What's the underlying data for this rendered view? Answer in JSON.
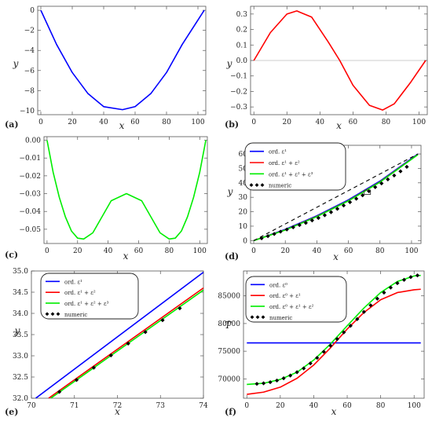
{
  "chart_data": [
    {
      "id": "a",
      "panel_label": "(a)",
      "type": "line",
      "xlabel": "x",
      "ylabel": "y",
      "xlim": [
        -2,
        105
      ],
      "ylim": [
        -10.4,
        0.4
      ],
      "xticks": [
        0,
        20,
        40,
        60,
        80,
        100
      ],
      "xtick_labels": [
        "0",
        "20",
        "40",
        "60",
        "80",
        "100"
      ],
      "yticks": [
        0,
        -2,
        -4,
        -6,
        -8,
        -10
      ],
      "ytick_labels": [
        "0",
        "−2",
        "−4",
        "−6",
        "−8",
        "−10"
      ],
      "zero_line": false,
      "series": [
        {
          "color": "#0000ff",
          "x": [
            0,
            10,
            20,
            30,
            40,
            52,
            60,
            70,
            80,
            90,
            104
          ],
          "y": [
            0,
            -3.4,
            -6.2,
            -8.3,
            -9.6,
            -9.9,
            -9.6,
            -8.3,
            -6.2,
            -3.4,
            0
          ]
        }
      ]
    },
    {
      "id": "b",
      "panel_label": "(b)",
      "type": "line",
      "xlabel": "x",
      "ylabel": "y",
      "xlim": [
        -2,
        105
      ],
      "ylim": [
        -0.35,
        0.35
      ],
      "xticks": [
        0,
        20,
        40,
        60,
        80,
        100
      ],
      "xtick_labels": [
        "0",
        "20",
        "40",
        "60",
        "80",
        "100"
      ],
      "yticks": [
        0.3,
        0.2,
        0.1,
        0,
        -0.1,
        -0.2,
        -0.3
      ],
      "ytick_labels": [
        "0.3",
        "0.2",
        "0.1",
        "0.0",
        "−0.1",
        "−0.2",
        "−0.3"
      ],
      "zero_line": true,
      "series": [
        {
          "color": "#ff0000",
          "x": [
            0,
            10,
            20,
            26,
            35,
            45,
            52,
            60,
            70,
            78,
            85,
            95,
            104
          ],
          "y": [
            0,
            0.18,
            0.3,
            0.32,
            0.28,
            0.12,
            0,
            -0.16,
            -0.29,
            -0.32,
            -0.28,
            -0.14,
            0
          ]
        }
      ]
    },
    {
      "id": "c",
      "panel_label": "(c)",
      "type": "line",
      "xlabel": "x",
      "ylabel": "",
      "xlim": [
        -2,
        105
      ],
      "ylim": [
        -0.058,
        0.002
      ],
      "xticks": [
        0,
        20,
        40,
        60,
        80,
        100
      ],
      "xtick_labels": [
        "0",
        "20",
        "40",
        "60",
        "80",
        "100"
      ],
      "yticks": [
        0,
        -0.01,
        -0.02,
        -0.03,
        -0.04,
        -0.05
      ],
      "ytick_labels": [
        "0.00",
        "−0.01",
        "−0.02",
        "−0.03",
        "−0.04",
        "−0.05"
      ],
      "zero_line": false,
      "series": [
        {
          "color": "#00ee00",
          "x": [
            0,
            4,
            8,
            12,
            16,
            20,
            24,
            30,
            36,
            42,
            52,
            62,
            68,
            74,
            80,
            84,
            88,
            92,
            96,
            100,
            104
          ],
          "y": [
            0,
            -0.018,
            -0.032,
            -0.043,
            -0.051,
            -0.055,
            -0.0555,
            -0.052,
            -0.043,
            -0.034,
            -0.03,
            -0.034,
            -0.043,
            -0.052,
            -0.0555,
            -0.055,
            -0.051,
            -0.043,
            -0.032,
            -0.018,
            0
          ]
        }
      ]
    },
    {
      "id": "d",
      "panel_label": "(d)",
      "type": "line",
      "xlabel": "x",
      "ylabel": "y",
      "xlim": [
        -2,
        106
      ],
      "ylim": [
        -2,
        66
      ],
      "xticks": [
        0,
        20,
        40,
        60,
        80,
        100
      ],
      "xtick_labels": [
        "0",
        "20",
        "40",
        "60",
        "80",
        "100"
      ],
      "yticks": [
        0,
        10,
        20,
        30,
        40,
        50,
        60
      ],
      "ytick_labels": [
        "0",
        "10",
        "20",
        "30",
        "40",
        "50",
        "60"
      ],
      "zero_line": false,
      "series": [
        {
          "name": "ord. ε¹",
          "color": "#0000ff",
          "x": [
            0,
            20,
            40,
            60,
            80,
            104
          ],
          "y": [
            0,
            7.8,
            17.2,
            28.2,
            41.2,
            60
          ]
        },
        {
          "name": "ord. ε¹ + ε²",
          "color": "#ff0000",
          "x": [
            0,
            20,
            40,
            60,
            80,
            104
          ],
          "y": [
            0,
            7.4,
            16.7,
            27.6,
            40.6,
            59.6
          ]
        },
        {
          "name": "ord. ε¹ + ε² + ε³",
          "color": "#00ee00",
          "x": [
            0,
            20,
            40,
            60,
            80,
            104
          ],
          "y": [
            0,
            7.3,
            16.6,
            27.5,
            40.5,
            59.5
          ]
        },
        {
          "name": "",
          "color": "#000000",
          "dashed": true,
          "x": [
            0,
            104
          ],
          "y": [
            0,
            60
          ]
        }
      ],
      "markers": {
        "name": "numeric",
        "color": "#000000",
        "x": [
          5,
          9,
          13,
          17,
          21,
          25,
          29,
          33,
          37,
          41,
          45,
          49,
          53,
          57,
          61,
          65,
          69,
          73,
          77,
          81,
          85,
          89,
          93,
          97
        ],
        "y": [
          1.6,
          3.1,
          4.6,
          6.2,
          7.7,
          9.2,
          10.8,
          12.3,
          14.0,
          15.7,
          17.6,
          19.7,
          22.0,
          24.3,
          26.6,
          29.0,
          31.4,
          34.2,
          37.0,
          39.6,
          42.4,
          45.1,
          48.0,
          51.1
        ]
      },
      "inset_box": {
        "x": [
          70,
          74
        ],
        "y": [
          32,
          35
        ]
      }
    },
    {
      "id": "e",
      "panel_label": "(e)",
      "type": "line",
      "xlabel": "x",
      "ylabel": "y",
      "xlim": [
        70,
        74
      ],
      "ylim": [
        32,
        35
      ],
      "xticks": [
        70,
        71,
        72,
        73,
        74
      ],
      "xtick_labels": [
        "70",
        "71",
        "72",
        "73",
        "74"
      ],
      "yticks": [
        32,
        32.5,
        33,
        33.5,
        34,
        34.5,
        35
      ],
      "ytick_labels": [
        "32.0",
        "32.5",
        "33.0",
        "33.5",
        "34.0",
        "34.5",
        "35.0"
      ],
      "zero_line": false,
      "series": [
        {
          "name": "ord. ε¹",
          "color": "#0000ff",
          "x": [
            70.1,
            74
          ],
          "y": [
            32.0,
            34.97
          ]
        },
        {
          "name": "ord. ε¹ + ε²",
          "color": "#ff0000",
          "x": [
            70.4,
            74
          ],
          "y": [
            32.0,
            34.6
          ]
        },
        {
          "name": "ord. ε¹ + ε² + ε³",
          "color": "#00ee00",
          "x": [
            70.45,
            74
          ],
          "y": [
            32.0,
            34.55
          ]
        }
      ],
      "markers": {
        "name": "numeric",
        "color": "#000000",
        "x": [
          70.65,
          71.05,
          71.45,
          71.85,
          72.25,
          72.65,
          73.05,
          73.45
        ],
        "y": [
          32.15,
          32.43,
          32.72,
          33.01,
          33.29,
          33.56,
          33.84,
          34.12
        ]
      }
    },
    {
      "id": "f",
      "panel_label": "(f)",
      "type": "line",
      "xlabel": "x",
      "ylabel": "T",
      "xlim": [
        -2,
        106
      ],
      "ylim": [
        66500,
        89500
      ],
      "xticks": [
        0,
        20,
        40,
        60,
        80,
        100
      ],
      "xtick_labels": [
        "0",
        "20",
        "40",
        "60",
        "80",
        "100"
      ],
      "yticks": [
        70000,
        75000,
        80000,
        85000
      ],
      "ytick_labels": [
        "70000",
        "75000",
        "80000",
        "85000"
      ],
      "zero_line": false,
      "series": [
        {
          "name": "ord. ε⁰",
          "color": "#0000ff",
          "x": [
            0,
            104
          ],
          "y": [
            76500,
            76500
          ]
        },
        {
          "name": "ord. ε⁰ + ε¹",
          "color": "#ff0000",
          "x": [
            0,
            10,
            20,
            30,
            40,
            50,
            60,
            70,
            80,
            90,
            100,
            104
          ],
          "y": [
            67200,
            67600,
            68500,
            70100,
            72500,
            75600,
            79000,
            82000,
            84300,
            85600,
            86100,
            86200
          ]
        },
        {
          "name": "ord. ε⁰ + ε¹ + ε²",
          "color": "#00ee00",
          "x": [
            0,
            10,
            20,
            30,
            40,
            50,
            60,
            70,
            80,
            90,
            100,
            104
          ],
          "y": [
            69000,
            69200,
            69900,
            71200,
            73400,
            76300,
            79600,
            82800,
            85600,
            87600,
            88600,
            88700
          ]
        }
      ],
      "markers": {
        "name": "numeric",
        "color": "#000000",
        "x": [
          6,
          10,
          14,
          18,
          22,
          26,
          30,
          34,
          38,
          42,
          46,
          50,
          54,
          58,
          62,
          66,
          70,
          74,
          78,
          82,
          86,
          90,
          94,
          98,
          102
        ],
        "y": [
          69100,
          69200,
          69400,
          69700,
          70100,
          70600,
          71200,
          71900,
          72800,
          73800,
          74900,
          76000,
          77200,
          78400,
          79600,
          80800,
          82100,
          83300,
          84500,
          85600,
          86500,
          87300,
          87900,
          88400,
          88700
        ]
      }
    }
  ]
}
